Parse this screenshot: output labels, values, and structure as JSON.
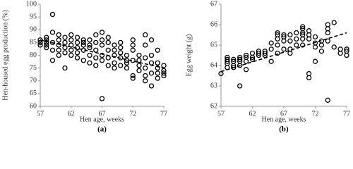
{
  "chart_data": [
    {
      "type": "scatter",
      "panel_label": "(a)",
      "xlabel": "Hen age, weeks",
      "ylabel": "Hen-housed egg production (%)",
      "xlim": [
        57,
        77
      ],
      "xticks": [
        57,
        62,
        67,
        72,
        77
      ],
      "ylim": [
        60,
        100
      ],
      "yticks": [
        60,
        65,
        70,
        75,
        80,
        85,
        90,
        95,
        100
      ],
      "marker_color": "#000000",
      "trend_color": "#000000",
      "x": [
        57,
        57,
        57,
        58,
        58,
        58,
        58,
        58,
        59,
        59,
        59,
        59,
        59,
        60,
        60,
        60,
        60,
        60,
        61,
        61,
        61,
        61,
        61,
        62,
        62,
        62,
        62,
        62,
        63,
        63,
        63,
        63,
        63,
        64,
        64,
        64,
        64,
        64,
        65,
        65,
        65,
        65,
        65,
        66,
        66,
        66,
        66,
        66,
        67,
        67,
        67,
        67,
        67,
        67,
        68,
        68,
        68,
        68,
        68,
        69,
        69,
        69,
        69,
        69,
        70,
        70,
        70,
        70,
        70,
        71,
        71,
        71,
        71,
        72,
        72,
        72,
        72,
        72,
        72,
        73,
        73,
        73,
        73,
        74,
        74,
        74,
        74,
        74,
        74,
        75,
        75,
        75,
        75,
        75,
        76,
        76,
        76,
        76,
        76,
        77,
        77,
        77,
        77
      ],
      "y": [
        85,
        84,
        86,
        86,
        85,
        84,
        87,
        83,
        96,
        89,
        85,
        82,
        78,
        88,
        84,
        86,
        82,
        80,
        85,
        83,
        75,
        87,
        81,
        84,
        86,
        82,
        80,
        88,
        87,
        83,
        85,
        81,
        79,
        85,
        82,
        86,
        78,
        84,
        84,
        80,
        86,
        83,
        77,
        88,
        82,
        85,
        79,
        76,
        89,
        84,
        63,
        80,
        86,
        78,
        85,
        82,
        79,
        76,
        87,
        84,
        80,
        77,
        82,
        75,
        83,
        79,
        81,
        76,
        85,
        80,
        77,
        78,
        75,
        86,
        82,
        72,
        78,
        84,
        71,
        80,
        76,
        74,
        78,
        88,
        84,
        75,
        72,
        70,
        79,
        86,
        77,
        73,
        68,
        80,
        82,
        75,
        73,
        71,
        77,
        76,
        74,
        73,
        72
      ],
      "trend": {
        "x": [
          57,
          77
        ],
        "y": [
          86,
          75
        ]
      }
    },
    {
      "type": "scatter",
      "panel_label": "(b)",
      "xlabel": "Hen age, weeks",
      "ylabel": "Egg weight (g)",
      "xlim": [
        57,
        77
      ],
      "xticks": [
        57,
        62,
        67,
        72,
        77
      ],
      "ylim": [
        62,
        67
      ],
      "yticks": [
        62,
        63,
        64,
        65,
        66,
        67
      ],
      "marker_color": "#000000",
      "trend_color": "#000000",
      "x": [
        57,
        58,
        58,
        58,
        58,
        58,
        59,
        59,
        59,
        59,
        60,
        60,
        60,
        60,
        60,
        61,
        61,
        61,
        61,
        62,
        62,
        62,
        63,
        63,
        63,
        64,
        64,
        64,
        65,
        65,
        65,
        66,
        66,
        66,
        66,
        66,
        67,
        67,
        67,
        67,
        68,
        68,
        68,
        68,
        69,
        69,
        69,
        70,
        70,
        70,
        70,
        70,
        70,
        71,
        71,
        71,
        71,
        71,
        72,
        72,
        72,
        72,
        73,
        73,
        73,
        74,
        74,
        74,
        74,
        74,
        75,
        75,
        76,
        76,
        77,
        77,
        77
      ],
      "y": [
        63.6,
        64.4,
        64.1,
        64.2,
        63.9,
        64.3,
        64.3,
        64.0,
        64.2,
        63.9,
        64.3,
        64.0,
        63.0,
        64.2,
        64.4,
        64.5,
        64.4,
        64.2,
        63.8,
        64.6,
        64.4,
        64.3,
        64.7,
        64.6,
        64.5,
        64.7,
        64.5,
        64.6,
        65.1,
        64.8,
        64.2,
        65.6,
        65.5,
        65.3,
        65.0,
        64.6,
        65.5,
        65.4,
        65.2,
        64.8,
        65.5,
        65.2,
        64.8,
        64.6,
        65.6,
        65.3,
        65.0,
        65.9,
        65.8,
        65.6,
        65.5,
        65.3,
        65.0,
        65.5,
        65.3,
        63.6,
        63.4,
        65.7,
        65.4,
        65.1,
        64.2,
        64.9,
        65.2,
        65.0,
        64.7,
        66.0,
        65.8,
        65.6,
        65.2,
        62.3,
        66.1,
        64.9,
        64.8,
        64.6,
        64.8,
        64.7,
        64.5
      ],
      "trend": {
        "x": [
          57,
          77
        ],
        "y": [
          63.7,
          65.6
        ]
      }
    }
  ]
}
